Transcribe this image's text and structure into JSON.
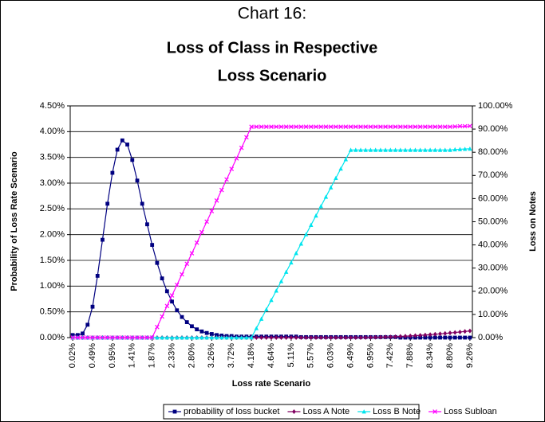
{
  "chart_data": {
    "type": "line",
    "title": "Chart 16:",
    "subtitle": [
      "Loss of Class in Respective",
      "Loss Scenario"
    ],
    "xlabel": "Loss rate Scenario",
    "ylabel": "Probability of Loss Rate Scenario",
    "y2label": "Loss on Notes",
    "categories": [
      "0.02%",
      null,
      null,
      null,
      "0.49%",
      null,
      null,
      null,
      "0.95%",
      null,
      null,
      null,
      "1.41%",
      null,
      null,
      null,
      "1.87%",
      null,
      null,
      null,
      "2.33%",
      null,
      null,
      null,
      "2.80%",
      null,
      null,
      null,
      "3.26%",
      null,
      null,
      null,
      "3.72%",
      null,
      null,
      null,
      "4.18%",
      null,
      null,
      null,
      "4.64%",
      null,
      null,
      null,
      "5.11%",
      null,
      null,
      null,
      "5.57%",
      null,
      null,
      null,
      "6.03%",
      null,
      null,
      null,
      "6.49%",
      null,
      null,
      null,
      "6.95%",
      null,
      null,
      null,
      "7.42%",
      null,
      null,
      null,
      "7.88%",
      null,
      null,
      null,
      "8.34%",
      null,
      null,
      null,
      "8.80%",
      null,
      null,
      null,
      "9.26%"
    ],
    "ylim": [
      0,
      4.5
    ],
    "yticks": [
      {
        "value": 0,
        "label": "0.00%"
      },
      {
        "value": 0.5,
        "label": "0.50%"
      },
      {
        "value": 1,
        "label": "1.00%"
      },
      {
        "value": 1.5,
        "label": "1.50%"
      },
      {
        "value": 2,
        "label": "2.00%"
      },
      {
        "value": 2.5,
        "label": "2.50%"
      },
      {
        "value": 3,
        "label": "3.00%"
      },
      {
        "value": 3.5,
        "label": "3.50%"
      },
      {
        "value": 4,
        "label": "4.00%"
      },
      {
        "value": 4.5,
        "label": "4.50%"
      }
    ],
    "y2lim": [
      0,
      100
    ],
    "y2ticks": [
      {
        "value": 0,
        "label": "0.00%"
      },
      {
        "value": 10,
        "label": "10.00%"
      },
      {
        "value": 20,
        "label": "20.00%"
      },
      {
        "value": 30,
        "label": "30.00%"
      },
      {
        "value": 40,
        "label": "40.00%"
      },
      {
        "value": 50,
        "label": "50.00%"
      },
      {
        "value": 60,
        "label": "60.00%"
      },
      {
        "value": 70,
        "label": "70.00%"
      },
      {
        "value": 80,
        "label": "80.00%"
      },
      {
        "value": 90,
        "label": "90.00%"
      },
      {
        "value": 100,
        "label": "100.00%"
      }
    ],
    "grid": true,
    "legend": "bottom",
    "series": [
      {
        "name": "probability of loss bucket",
        "color": "#000080",
        "marker": "square",
        "values": [
          0.05,
          0.05,
          0.08,
          0.25,
          0.6,
          1.2,
          1.9,
          2.6,
          3.2,
          3.65,
          3.83,
          3.75,
          3.45,
          3.05,
          2.6,
          2.2,
          1.8,
          1.45,
          1.15,
          0.9,
          0.7,
          0.53,
          0.4,
          0.3,
          0.22,
          0.16,
          0.12,
          0.09,
          0.07,
          0.05,
          0.04,
          0.03,
          0.03,
          0.02,
          0.02,
          0.02,
          0.02,
          0.02,
          0.02,
          0.02,
          0.02,
          0.02,
          0.02,
          0.02,
          0.02,
          0.02,
          0.01,
          0.01,
          0.01,
          0.01,
          0.01,
          0.01,
          0.01,
          0.01,
          0.01,
          0.01,
          0.01,
          0.01,
          0.01,
          0.01,
          0.01,
          0.01,
          0.01,
          0.01,
          0.01,
          0.01,
          0,
          0,
          0,
          0,
          0,
          0,
          0,
          0,
          0,
          0,
          0,
          0,
          0,
          0,
          0
        ]
      },
      {
        "name": "Loss A Note",
        "color": "#800060",
        "marker": "diamond",
        "axis": "y2",
        "values": [
          0,
          0,
          0,
          0,
          0,
          0,
          0,
          0,
          0,
          0,
          0,
          0,
          0,
          0,
          0,
          0,
          0,
          0,
          0,
          0,
          0,
          0,
          0,
          0,
          0,
          0,
          0,
          0,
          0,
          0,
          0,
          0,
          0,
          0,
          0,
          0,
          0,
          0,
          0,
          0,
          0,
          0,
          0,
          0,
          0,
          0,
          0,
          0,
          0,
          0,
          0,
          0,
          0,
          0,
          0,
          0,
          0,
          0.005,
          0.02,
          0.045,
          0.08,
          0.125,
          0.18,
          0.245,
          0.32,
          0.405,
          0.5,
          0.605,
          0.72,
          0.845,
          0.98,
          1.125,
          1.28,
          1.445,
          1.62,
          1.805,
          2,
          2.205,
          2.42,
          2.645,
          2.88
        ]
      },
      {
        "name": "Loss B Note",
        "color": "#00e5ee",
        "marker": "triangle",
        "axis": "y2",
        "values": [
          0,
          0,
          0,
          0,
          0,
          0,
          0,
          0,
          0,
          0,
          0,
          0,
          0,
          0,
          0,
          0,
          0,
          0,
          0,
          0,
          0,
          0,
          0,
          0,
          0,
          0,
          0,
          0,
          0,
          0,
          0,
          0,
          0,
          0,
          0,
          0,
          0,
          4.05,
          8.1,
          12.15,
          16.2,
          20.25,
          24.3,
          28.35,
          32.4,
          36.45,
          40.5,
          44.55,
          48.6,
          52.65,
          56.7,
          60.75,
          64.8,
          68.85,
          72.9,
          76.95,
          81,
          81,
          81,
          81,
          81,
          81,
          81,
          81,
          81,
          81,
          81,
          81,
          81,
          81,
          81,
          81,
          81,
          81,
          81,
          81,
          81,
          81.2,
          81.3,
          81.4,
          81.5
        ]
      },
      {
        "name": "Loss Subloan",
        "color": "#ff00ff",
        "marker": "x",
        "axis": "y2",
        "values": [
          0,
          0,
          0,
          0,
          0,
          0,
          0,
          0,
          0,
          0,
          0,
          0,
          0,
          0,
          0,
          0,
          0,
          4.55,
          9.1,
          13.65,
          18.2,
          22.75,
          27.3,
          31.85,
          36.4,
          40.95,
          45.5,
          50.05,
          54.6,
          59.15,
          63.7,
          68.25,
          72.8,
          77.35,
          81.9,
          86.45,
          91,
          91,
          91,
          91,
          91,
          91,
          91,
          91,
          91,
          91,
          91,
          91,
          91,
          91,
          91,
          91,
          91,
          91,
          91,
          91,
          91,
          91,
          91,
          91,
          91,
          91,
          91,
          91,
          91,
          91,
          91,
          91,
          91,
          91,
          91,
          91,
          91,
          91,
          91,
          91,
          91,
          91.1,
          91.2,
          91.2,
          91.3
        ]
      }
    ]
  }
}
